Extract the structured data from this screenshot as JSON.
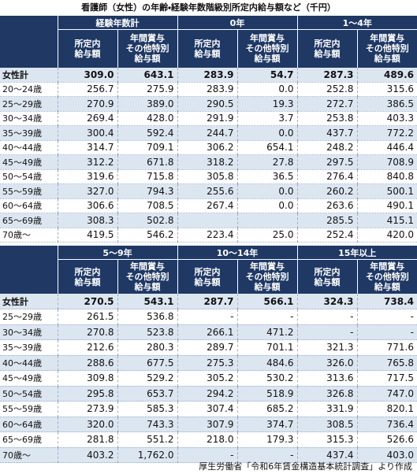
{
  "title": "看護師（女性）の年齢・経験年数階級別所定内給与額など（千円）",
  "tables": [
    {
      "groups": [
        "経験年数計",
        "0年",
        "1～4年"
      ],
      "subheaders": [
        "所定内\n給与額",
        "年間賞与\nその他特別\n給与額"
      ],
      "rows": [
        [
          "女性計",
          "309.0",
          "643.1",
          "283.9",
          "54.7",
          "287.3",
          "489.6"
        ],
        [
          "20～24歳",
          "256.7",
          "275.9",
          "283.9",
          "0.0",
          "252.8",
          "315.6"
        ],
        [
          "25～29歳",
          "270.9",
          "389.0",
          "290.5",
          "19.3",
          "272.7",
          "386.5"
        ],
        [
          "30～34歳",
          "269.4",
          "428.0",
          "291.9",
          "3.7",
          "253.8",
          "403.3"
        ],
        [
          "35～39歳",
          "300.4",
          "592.4",
          "244.7",
          "0.0",
          "437.7",
          "772.2"
        ],
        [
          "40～44歳",
          "314.7",
          "709.1",
          "306.2",
          "654.1",
          "248.2",
          "446.4"
        ],
        [
          "45～49歳",
          "312.2",
          "671.8",
          "318.2",
          "27.8",
          "297.5",
          "708.9"
        ],
        [
          "50～54歳",
          "319.6",
          "715.8",
          "305.8",
          "36.5",
          "276.4",
          "840.8"
        ],
        [
          "55～59歳",
          "327.0",
          "794.3",
          "255.6",
          "0.0",
          "260.2",
          "500.1"
        ],
        [
          "60～64歳",
          "306.6",
          "708.5",
          "267.4",
          "0.0",
          "263.6",
          "490.1"
        ],
        [
          "65～69歳",
          "308.3",
          "502.8",
          null,
          null,
          "285.5",
          "415.1"
        ],
        [
          "70歳～",
          "419.5",
          "546.2",
          "223.4",
          "25.0",
          "252.4",
          "420.0"
        ]
      ]
    },
    {
      "groups": [
        "5～9年",
        "10～14年",
        "15年以上"
      ],
      "subheaders": [
        "所定内\n給与額",
        "年間賞与\nその他特別\n給与額"
      ],
      "rows": [
        [
          "女性計",
          "270.5",
          "543.1",
          "287.7",
          "566.1",
          "324.3",
          "738.4"
        ],
        [
          "25～29歳",
          "261.5",
          "536.8",
          "-",
          "-",
          "-",
          "-"
        ],
        [
          "30～34歳",
          "270.8",
          "523.8",
          "266.1",
          "471.2",
          "-",
          "-"
        ],
        [
          "35～39歳",
          "212.6",
          "280.3",
          "289.7",
          "701.1",
          "321.3",
          "771.6"
        ],
        [
          "40～44歳",
          "288.6",
          "677.5",
          "275.3",
          "484.6",
          "326.0",
          "765.8"
        ],
        [
          "45～49歳",
          "309.8",
          "529.2",
          "305.2",
          "530.2",
          "313.6",
          "717.5"
        ],
        [
          "50～54歳",
          "295.8",
          "653.7",
          "294.2",
          "518.9",
          "326.8",
          "747.0"
        ],
        [
          "55～59歳",
          "273.9",
          "585.3",
          "307.4",
          "685.2",
          "331.9",
          "820.1"
        ],
        [
          "60～64歳",
          "320.0",
          "743.3",
          "307.9",
          "374.7",
          "308.5",
          "736.4"
        ],
        [
          "65～69歳",
          "281.8",
          "551.2",
          "218.0",
          "179.3",
          "315.3",
          "526.6"
        ],
        [
          "70歳～",
          "403.2",
          "1,762.0",
          "-",
          "-",
          "437.4",
          "403.0"
        ]
      ]
    }
  ],
  "source": "厚生労働省「令和6年賃金構造基本統計調査」より作成"
}
